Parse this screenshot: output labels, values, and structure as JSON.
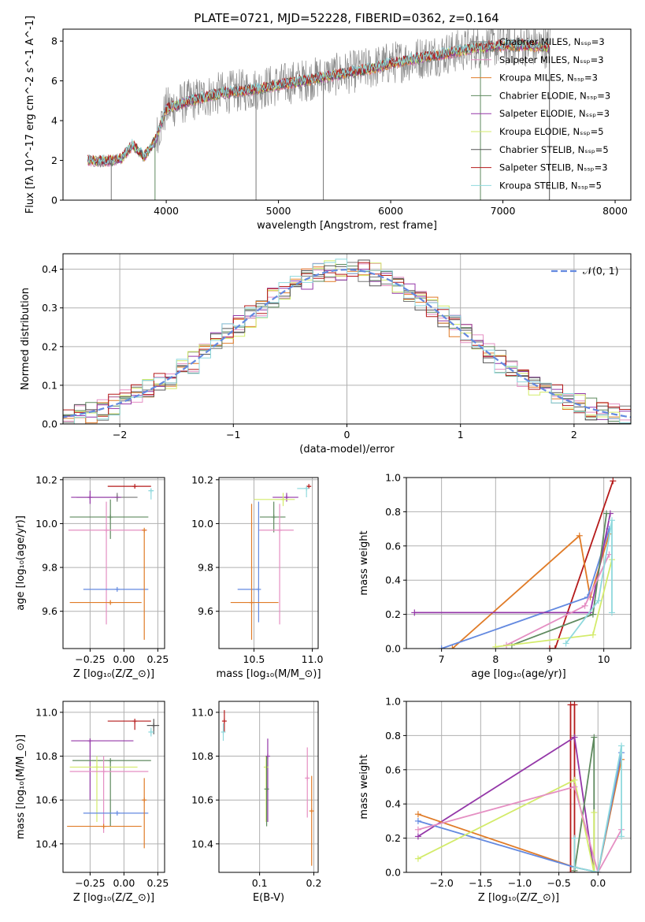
{
  "figure": {
    "title": "PLATE=0721, MJD=52228, FIBERID=0362, z=0.164"
  },
  "colors": {
    "model_palette": [
      "#777777",
      "#e58fc3",
      "#e07b27",
      "#5f8a5f",
      "#9437a8",
      "#d3eb6a",
      "#555555",
      "#b51a1a",
      "#8fd9dd"
    ],
    "spectrum_data": "#8a8a8a",
    "gaussian": "#6389e0",
    "grid": "#b0b0b0"
  },
  "chart_data": [
    {
      "id": "spectrum",
      "type": "line",
      "title": "PLATE=0721, MJD=52228, FIBERID=0362, z=0.164",
      "xlabel": "wavelength [Angstrom, rest frame]",
      "ylabel": "Flux [f_λ 10^-17 erg cm^-2 s^-1 A^-1]",
      "xlim": [
        3080,
        8140
      ],
      "ylim": [
        0,
        8.6
      ],
      "xticks": [
        4000,
        5000,
        6000,
        7000,
        8000
      ],
      "yticks": [
        0,
        2,
        4,
        6,
        8
      ],
      "grid": false,
      "legend_position": "upper-right",
      "legend": [
        "Chabrier MILES, N_SSP=3",
        "Salpeter MILES, N_SSP=3",
        "Kroupa MILES, N_SSP=3",
        "Chabrier ELODIE, N_SSP=3",
        "Salpeter ELODIE, N_SSP=3",
        "Kroupa ELODIE, N_SSP=5",
        "Chabrier STELIB, N_SSP=5",
        "Salpeter STELIB, N_SSP=3",
        "Kroupa STELIB, N_SSP=5"
      ],
      "continuum": {
        "x": [
          3300,
          3500,
          3600,
          3700,
          3800,
          3900,
          4000,
          4200,
          4500,
          4800,
          5000,
          5200,
          5500,
          5800,
          6000,
          6300,
          6500,
          6800,
          7000,
          7200,
          7400
        ],
        "y": [
          2.0,
          2.0,
          2.1,
          2.8,
          2.2,
          3.0,
          4.6,
          5.0,
          5.4,
          5.6,
          5.8,
          6.0,
          6.3,
          6.6,
          6.9,
          7.2,
          7.4,
          7.7,
          7.8,
          7.8,
          7.7
        ]
      }
    },
    {
      "id": "residuals",
      "type": "histogram",
      "xlabel": "(data-model)/error",
      "ylabel": "Normed distribution",
      "xlim": [
        -2.5,
        2.5
      ],
      "ylim": [
        0,
        0.44
      ],
      "xticks": [
        -2,
        -1,
        0,
        1,
        2
      ],
      "yticks": [
        0.0,
        0.1,
        0.2,
        0.3,
        0.4
      ],
      "grid": true,
      "legend_position": "upper-right",
      "legend": [
        "𝒩(0, 1)"
      ],
      "bin_width": 0.1
    },
    {
      "id": "age-vs-Z",
      "type": "errorbar",
      "xlabel": "Z [log10(Z/Z_⊙)]",
      "ylabel": "age [log10(age/yr)]",
      "xlim": [
        -0.45,
        0.3
      ],
      "ylim": [
        9.43,
        10.21
      ],
      "xticks": [
        -0.25,
        0.0,
        0.25
      ],
      "yticks": [
        9.6,
        9.8,
        10.0,
        10.2
      ],
      "grid": true,
      "points": [
        {
          "x": 0.08,
          "y": 10.17,
          "xerr": [
            0.2,
            0.12
          ],
          "yerr": [
            0,
            0.0
          ],
          "c": 7
        },
        {
          "x": -0.05,
          "y": 10.12,
          "xerr": [
            0.3,
            0.15
          ],
          "yerr": [
            0.02,
            0.02
          ],
          "c": 0
        },
        {
          "x": -0.25,
          "y": 10.12,
          "xerr": [
            0.14,
            0.23
          ],
          "yerr": [
            0.03,
            0.03
          ],
          "c": 4
        },
        {
          "x": -0.1,
          "y": 10.03,
          "xerr": [
            0.3,
            0.28
          ],
          "yerr": [
            0.1,
            0.08
          ],
          "c": 3
        },
        {
          "x": -0.13,
          "y": 9.97,
          "xerr": [
            0.28,
            0.3
          ],
          "yerr": [
            0.43,
            0.13
          ],
          "c": 1
        },
        {
          "x": -0.05,
          "y": 9.7,
          "xerr": [
            0.25,
            0.23
          ],
          "yerr": [
            0,
            0
          ],
          "c": 8,
          "cc": "#6389e0"
        },
        {
          "x": -0.1,
          "y": 9.64,
          "xerr": [
            0.3,
            0.23
          ],
          "yerr": [
            0,
            0
          ],
          "c": 2
        },
        {
          "x": 0.15,
          "y": 9.97,
          "xerr": [
            0,
            0
          ],
          "yerr": [
            0.5,
            0.0
          ],
          "c": 2
        },
        {
          "x": 0.2,
          "y": 10.15,
          "xerr": [
            0.02,
            0.02
          ],
          "yerr": [
            0.04,
            0.01
          ],
          "c": 8
        }
      ]
    },
    {
      "id": "age-vs-mass",
      "type": "errorbar",
      "xlabel": "mass [log10(M/M_⊙)]",
      "ylabel": "",
      "xlim": [
        10.2,
        11.05
      ],
      "ylim": [
        9.43,
        10.21
      ],
      "xticks": [
        10.5,
        11.0
      ],
      "yticks": [
        9.6,
        9.8,
        10.0,
        10.2
      ],
      "grid": true,
      "points": [
        {
          "x": 10.97,
          "y": 10.17,
          "xerr": [
            0.02,
            0.02
          ],
          "yerr": [
            0,
            0
          ],
          "c": 7
        },
        {
          "x": 10.95,
          "y": 10.16,
          "xerr": [
            0.08,
            0.02
          ],
          "yerr": [
            0.04,
            0.01
          ],
          "c": 8
        },
        {
          "x": 10.78,
          "y": 10.12,
          "xerr": [
            0.12,
            0.1
          ],
          "yerr": [
            0.02,
            0.02
          ],
          "c": 4
        },
        {
          "x": 10.75,
          "y": 10.11,
          "xerr": [
            0.25,
            0.1
          ],
          "yerr": [
            0.03,
            0.03
          ],
          "c": 5
        },
        {
          "x": 10.67,
          "y": 10.03,
          "xerr": [
            0.12,
            0.1
          ],
          "yerr": [
            0.07,
            0.07
          ],
          "c": 3
        },
        {
          "x": 10.72,
          "y": 9.97,
          "xerr": [
            0.18,
            0.12
          ],
          "yerr": [
            0.43,
            0.12
          ],
          "c": 1
        },
        {
          "x": 10.54,
          "y": 9.7,
          "xerr": [
            0.18,
            0.0
          ],
          "yerr": [
            0.15,
            0.4
          ],
          "c": 8,
          "cc": "#6389e0"
        },
        {
          "x": 10.48,
          "y": 9.64,
          "xerr": [
            0.18,
            0.23
          ],
          "yerr": [
            0.17,
            0.45
          ],
          "c": 2
        }
      ]
    },
    {
      "id": "weight-vs-age",
      "type": "line",
      "xlabel": "age [log10(age/yr)]",
      "ylabel": "mass weight",
      "xlim": [
        6.35,
        10.5
      ],
      "ylim": [
        0,
        1.0
      ],
      "xticks": [
        7,
        8,
        9,
        10
      ],
      "yticks": [
        0.0,
        0.2,
        0.4,
        0.6,
        0.8,
        1.0
      ],
      "grid": true,
      "series": [
        {
          "c": 7,
          "x": [
            9.0,
            9.1,
            10.17
          ],
          "y": [
            0,
            0,
            0.98
          ]
        },
        {
          "c": 2,
          "x": [
            7.2,
            9.55,
            9.75,
            10.1
          ],
          "y": [
            0,
            0.66,
            0.3,
            0.67
          ]
        },
        {
          "c": 8,
          "cc": "#6389e0",
          "x": [
            7.0,
            9.7,
            10.1
          ],
          "y": [
            0,
            0.3,
            0.7
          ]
        },
        {
          "c": 4,
          "x": [
            6.5,
            9.75,
            10.12
          ],
          "y": [
            0.21,
            0.21,
            0.79
          ]
        },
        {
          "c": 3,
          "x": [
            8.3,
            9.8,
            10.05
          ],
          "y": [
            0.02,
            0.2,
            0.79
          ]
        },
        {
          "c": 1,
          "x": [
            8.2,
            9.65,
            10.1
          ],
          "y": [
            0.02,
            0.25,
            0.55
          ]
        },
        {
          "c": 5,
          "x": [
            8.0,
            9.8,
            10.15
          ],
          "y": [
            0.01,
            0.08,
            0.52
          ]
        },
        {
          "c": 8,
          "x": [
            9.3,
            9.9,
            10.15,
            10.15
          ],
          "y": [
            0.03,
            0.28,
            0.75,
            0.21
          ]
        }
      ]
    },
    {
      "id": "mass-vs-Z",
      "type": "errorbar",
      "xlabel": "Z [log10(Z/Z_⊙)]",
      "ylabel": "mass [log10(M/M_⊙)]",
      "xlim": [
        -0.45,
        0.3
      ],
      "ylim": [
        10.27,
        11.05
      ],
      "xticks": [
        -0.25,
        0.0,
        0.25
      ],
      "yticks": [
        10.4,
        10.6,
        10.8,
        11.0
      ],
      "grid": true,
      "points": [
        {
          "x": 0.08,
          "y": 10.96,
          "xerr": [
            0.2,
            0.12
          ],
          "yerr": [
            0.04,
            0.0
          ],
          "c": 7
        },
        {
          "x": 0.22,
          "y": 10.94,
          "xerr": [
            0.05,
            0.04
          ],
          "yerr": [
            0.04,
            0.03
          ],
          "c": 6
        },
        {
          "x": 0.2,
          "y": 10.91,
          "xerr": [
            0.02,
            0.02
          ],
          "yerr": [
            0.02,
            0.02
          ],
          "c": 8
        },
        {
          "x": -0.25,
          "y": 10.87,
          "xerr": [
            0.14,
            0.32
          ],
          "yerr": [
            0.27,
            0.0
          ],
          "c": 4
        },
        {
          "x": -0.1,
          "y": 10.78,
          "xerr": [
            0.28,
            0.3
          ],
          "yerr": [
            0.3,
            0.0
          ],
          "c": 3
        },
        {
          "x": -0.2,
          "y": 10.75,
          "xerr": [
            0.2,
            0.3
          ],
          "yerr": [
            0.25,
            0.05
          ],
          "c": 5
        },
        {
          "x": -0.15,
          "y": 10.73,
          "xerr": [
            0.25,
            0.33
          ],
          "yerr": [
            0.28,
            0.07
          ],
          "c": 1
        },
        {
          "x": -0.05,
          "y": 10.54,
          "xerr": [
            0.25,
            0.23
          ],
          "yerr": [
            0,
            0
          ],
          "c": 8,
          "cc": "#6389e0"
        },
        {
          "x": -0.15,
          "y": 10.48,
          "xerr": [
            0.27,
            0.28
          ],
          "yerr": [
            0,
            0
          ],
          "c": 2
        },
        {
          "x": 0.15,
          "y": 10.6,
          "xerr": [
            0,
            0
          ],
          "yerr": [
            0.22,
            0.1
          ],
          "c": 2
        }
      ]
    },
    {
      "id": "mass-vs-EBV",
      "type": "errorbar",
      "xlabel": "E(B-V)",
      "ylabel": "",
      "xlim": [
        0.025,
        0.208
      ],
      "ylim": [
        10.27,
        11.05
      ],
      "xticks": [
        0.1,
        0.2
      ],
      "yticks": [
        10.4,
        10.6,
        10.8,
        11.0
      ],
      "grid": true,
      "points": [
        {
          "x": 0.035,
          "y": 10.96,
          "xerr": [
            0,
            0
          ],
          "yerr": [
            0.05,
            0.05
          ],
          "c": 7
        },
        {
          "x": 0.033,
          "y": 10.91,
          "xerr": [
            0,
            0
          ],
          "yerr": [
            0.04,
            0.04
          ],
          "c": 8
        },
        {
          "x": 0.115,
          "y": 10.8,
          "xerr": [
            0,
            0
          ],
          "yerr": [
            0.3,
            0.08
          ],
          "c": 4
        },
        {
          "x": 0.112,
          "y": 10.75,
          "xerr": [
            0,
            0
          ],
          "yerr": [
            0.25,
            0.05
          ],
          "c": 5
        },
        {
          "x": 0.113,
          "y": 10.65,
          "xerr": [
            0,
            0
          ],
          "yerr": [
            0.17,
            0.15
          ],
          "c": 3
        },
        {
          "x": 0.188,
          "y": 10.7,
          "xerr": [
            0,
            0
          ],
          "yerr": [
            0.18,
            0.14
          ],
          "c": 1
        },
        {
          "x": 0.196,
          "y": 10.55,
          "xerr": [
            0,
            0
          ],
          "yerr": [
            0.25,
            0.16
          ],
          "c": 2
        }
      ]
    },
    {
      "id": "weight-vs-Z",
      "type": "line",
      "xlabel": "Z [log10(Z/Z_⊙)]",
      "ylabel": "mass weight",
      "xlim": [
        -2.45,
        0.42
      ],
      "ylim": [
        0,
        1.0
      ],
      "xticks": [
        -2.0,
        -1.5,
        -1.0,
        -0.5,
        0.0
      ],
      "yticks": [
        0.0,
        0.2,
        0.4,
        0.6,
        0.8,
        1.0
      ],
      "grid": true,
      "series": [
        {
          "c": 7,
          "x": [
            -0.35,
            -0.35,
            -0.3,
            -0.3
          ],
          "y": [
            0,
            0.98,
            0.98,
            0
          ]
        },
        {
          "c": 4,
          "x": [
            -2.3,
            -0.3,
            -0.05
          ],
          "y": [
            0.21,
            0.79,
            0.0
          ]
        },
        {
          "c": 3,
          "x": [
            -0.3,
            -0.05,
            -0.05
          ],
          "y": [
            0.01,
            0.79,
            0.0
          ]
        },
        {
          "c": 2,
          "x": [
            -2.3,
            -0.3,
            0.0,
            0.3
          ],
          "y": [
            0.34,
            0.03,
            0.0,
            0.66
          ]
        },
        {
          "c": 8,
          "cc": "#6389e0",
          "x": [
            -2.3,
            -0.3,
            0.0,
            0.3
          ],
          "y": [
            0.3,
            0.03,
            0.0,
            0.7
          ]
        },
        {
          "c": 5,
          "x": [
            -2.3,
            -0.3,
            -0.05,
            -0.05
          ],
          "y": [
            0.08,
            0.54,
            0.0,
            0.35
          ]
        },
        {
          "c": 1,
          "x": [
            -2.3,
            -0.3,
            0.0,
            0.3
          ],
          "y": [
            0.25,
            0.5,
            0.0,
            0.25
          ]
        },
        {
          "c": 8,
          "x": [
            -0.3,
            -0.3,
            0.0,
            0.3,
            0.3
          ],
          "y": [
            0.2,
            0.03,
            0.0,
            0.74,
            0.21
          ]
        }
      ]
    }
  ]
}
